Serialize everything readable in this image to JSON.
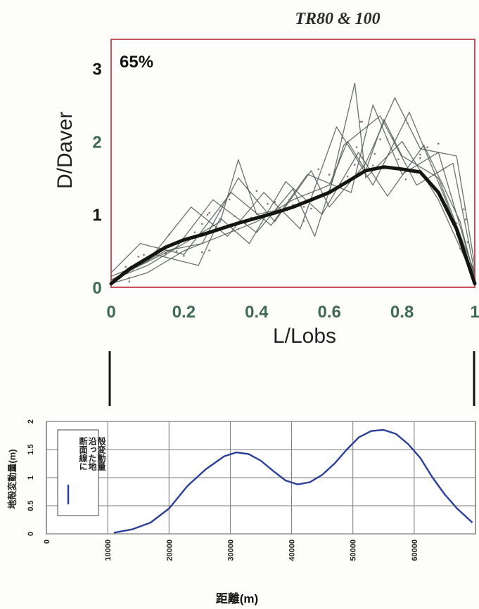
{
  "chart_data": [
    {
      "type": "line",
      "title": "TR80 & 100",
      "annotation": "65%",
      "xlabel": "L/Lobs",
      "ylabel": "D/Daver",
      "xlim": [
        0,
        1
      ],
      "ylim": [
        0,
        3.4
      ],
      "x_ticks": [
        "0",
        "0.2",
        "0.4",
        "0.6",
        "0.8",
        "1"
      ],
      "y_ticks": [
        "0",
        "1",
        "2",
        "3"
      ],
      "grid": false,
      "colors": {
        "frame": "#c9525a",
        "thin_lines": "#4f5a52",
        "mean_line": "#141414",
        "dots": "#8a6f72"
      },
      "mean_series": {
        "x": [
          0.0,
          0.05,
          0.1,
          0.15,
          0.2,
          0.25,
          0.3,
          0.35,
          0.4,
          0.45,
          0.5,
          0.55,
          0.6,
          0.65,
          0.7,
          0.75,
          0.8,
          0.85,
          0.9,
          0.95,
          1.0
        ],
        "y": [
          0.05,
          0.25,
          0.4,
          0.55,
          0.65,
          0.72,
          0.8,
          0.88,
          0.95,
          1.02,
          1.1,
          1.2,
          1.3,
          1.45,
          1.6,
          1.65,
          1.62,
          1.58,
          1.3,
          0.8,
          0.05
        ]
      },
      "individual_series": [
        {
          "x": [
            0,
            0.1,
            0.2,
            0.3,
            0.35,
            0.4,
            0.5,
            0.6,
            0.67,
            0.7,
            0.8,
            0.9,
            1.0
          ],
          "y": [
            0.1,
            0.3,
            0.6,
            0.9,
            1.75,
            1.0,
            1.1,
            1.3,
            2.8,
            1.5,
            2.0,
            1.2,
            0.1
          ]
        },
        {
          "x": [
            0,
            0.1,
            0.2,
            0.3,
            0.4,
            0.5,
            0.6,
            0.65,
            0.7,
            0.75,
            0.8,
            0.9,
            1.0
          ],
          "y": [
            0.05,
            0.2,
            0.5,
            0.7,
            0.9,
            1.2,
            1.4,
            2.0,
            1.6,
            2.3,
            1.8,
            1.5,
            0.2
          ]
        },
        {
          "x": [
            0,
            0.15,
            0.25,
            0.35,
            0.45,
            0.55,
            0.6,
            0.7,
            0.78,
            0.85,
            0.95,
            1.0
          ],
          "y": [
            0.1,
            0.5,
            0.6,
            1.5,
            0.9,
            1.6,
            1.1,
            1.7,
            2.6,
            1.9,
            1.8,
            0.3
          ]
        },
        {
          "x": [
            0,
            0.1,
            0.22,
            0.32,
            0.42,
            0.52,
            0.62,
            0.72,
            0.82,
            0.92,
            1.0
          ],
          "y": [
            0.15,
            0.35,
            1.1,
            0.7,
            1.3,
            0.8,
            2.2,
            1.4,
            2.4,
            1.2,
            0.1
          ]
        },
        {
          "x": [
            0,
            0.12,
            0.24,
            0.3,
            0.38,
            0.48,
            0.58,
            0.68,
            0.76,
            0.86,
            0.96,
            1.0
          ],
          "y": [
            0.05,
            0.45,
            0.3,
            0.95,
            0.6,
            1.45,
            1.0,
            1.85,
            1.25,
            1.95,
            0.9,
            0.1
          ]
        },
        {
          "x": [
            0,
            0.18,
            0.28,
            0.4,
            0.5,
            0.56,
            0.64,
            0.74,
            0.84,
            0.94,
            1.0
          ],
          "y": [
            0.1,
            0.55,
            1.2,
            0.75,
            1.35,
            0.7,
            1.95,
            2.35,
            1.4,
            1.7,
            0.2
          ]
        },
        {
          "x": [
            0,
            0.08,
            0.2,
            0.33,
            0.44,
            0.54,
            0.66,
            0.72,
            0.8,
            0.9,
            1.0
          ],
          "y": [
            0.2,
            0.6,
            0.45,
            1.3,
            0.85,
            1.55,
            1.3,
            2.5,
            1.55,
            1.85,
            0.15
          ]
        }
      ]
    },
    {
      "type": "line",
      "xlabel": "距離(m)",
      "ylabel": "地殻変動量(m)",
      "legend": "断面線に沿った地殻変動量",
      "legend_position": "left",
      "xlim": [
        0,
        70000
      ],
      "ylim": [
        0,
        2
      ],
      "x_ticks": [
        "0",
        "10000",
        "20000",
        "30000",
        "40000",
        "50000",
        "60000"
      ],
      "y_ticks": [
        "0",
        "0.5",
        "1",
        "1.5",
        "2"
      ],
      "grid": true,
      "colors": {
        "line": "#2b3f9a",
        "grid": "#7a7a7a"
      },
      "series": [
        {
          "name": "断面線に沿った地殻変動量",
          "x": [
            11000,
            14000,
            17000,
            20000,
            23000,
            26000,
            29000,
            31000,
            33000,
            35000,
            37000,
            39000,
            41000,
            43000,
            45000,
            47000,
            49000,
            51000,
            53000,
            55000,
            57000,
            59000,
            61000,
            63000,
            65000,
            67000,
            69500
          ],
          "y": [
            0.02,
            0.08,
            0.2,
            0.45,
            0.85,
            1.15,
            1.38,
            1.45,
            1.42,
            1.3,
            1.12,
            0.95,
            0.88,
            0.92,
            1.05,
            1.25,
            1.5,
            1.72,
            1.83,
            1.85,
            1.78,
            1.6,
            1.35,
            1.0,
            0.7,
            0.45,
            0.2
          ]
        }
      ]
    }
  ]
}
